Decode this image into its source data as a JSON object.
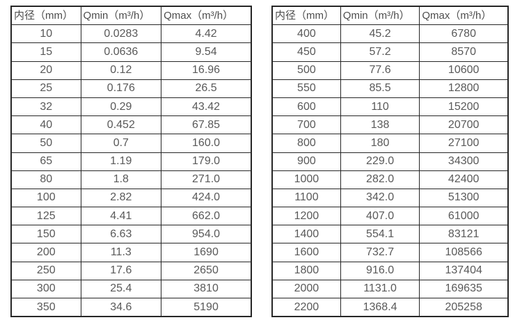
{
  "colors": {
    "border": "#262626",
    "header_text": "#4d4d4d",
    "cell_text": "#595959",
    "background": "#ffffff"
  },
  "table_left": {
    "headers": [
      "内径（mm）",
      "Qmin（m³/h）",
      "Qmax（m³/h）"
    ],
    "rows": [
      [
        "10",
        "0.0283",
        "4.42"
      ],
      [
        "15",
        "0.0636",
        "9.54"
      ],
      [
        "20",
        "0.12",
        "16.96"
      ],
      [
        "25",
        "0.176",
        "26.5"
      ],
      [
        "32",
        "0.29",
        "43.42"
      ],
      [
        "40",
        "0.452",
        "67.85"
      ],
      [
        "50",
        "0.7",
        "160.0"
      ],
      [
        "65",
        "1.19",
        "179.0"
      ],
      [
        "80",
        "1.8",
        "271.0"
      ],
      [
        "100",
        "2.82",
        "424.0"
      ],
      [
        "125",
        "4.41",
        "662.0"
      ],
      [
        "150",
        "6.63",
        "954.0"
      ],
      [
        "200",
        "11.3",
        "1690"
      ],
      [
        "250",
        "17.6",
        "2650"
      ],
      [
        "300",
        "25.4",
        "3810"
      ],
      [
        "350",
        "34.6",
        "5190"
      ]
    ]
  },
  "table_right": {
    "headers": [
      "内径（mm）",
      "Qmin（m³/h）",
      "Qmax（m³/h）"
    ],
    "rows": [
      [
        "400",
        "45.2",
        "6780"
      ],
      [
        "450",
        "57.2",
        "8570"
      ],
      [
        "500",
        "77.6",
        "10600"
      ],
      [
        "550",
        "85.5",
        "12800"
      ],
      [
        "600",
        "110",
        "15200"
      ],
      [
        "700",
        "138",
        "20700"
      ],
      [
        "800",
        "180",
        "27100"
      ],
      [
        "900",
        "229.0",
        "34300"
      ],
      [
        "1000",
        "282.0",
        "42400"
      ],
      [
        "1100",
        "342.0",
        "51300"
      ],
      [
        "1200",
        "407.0",
        "61000"
      ],
      [
        "1400",
        "554.1",
        "83121"
      ],
      [
        "1600",
        "732.7",
        "108566"
      ],
      [
        "1800",
        "916.0",
        "137404"
      ],
      [
        "2000",
        "1131.0",
        "169635"
      ],
      [
        "2200",
        "1368.4",
        "205258"
      ]
    ]
  }
}
